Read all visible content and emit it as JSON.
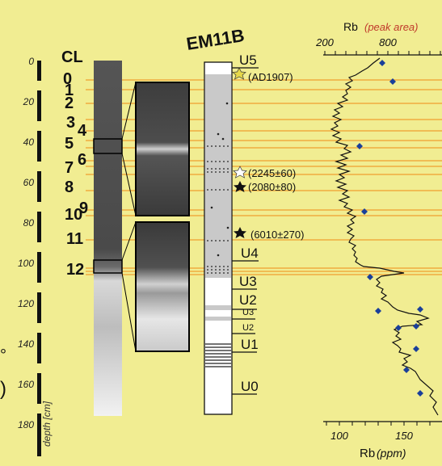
{
  "core_title": "EM11B",
  "cl_header": "CL",
  "depth_axis": {
    "label": "depth [cm]",
    "ticks": [
      "0",
      "20",
      "40",
      "60",
      "80",
      "100",
      "120",
      "140",
      "160",
      "180"
    ]
  },
  "cl_numbers": [
    "0",
    "1",
    "2",
    "3",
    "4",
    "5",
    "6",
    "7",
    "8",
    "9",
    "10",
    "11",
    "12"
  ],
  "units_top": [
    "U5",
    "U4",
    "U3",
    "U2",
    "U3",
    "U2",
    "U1",
    "U0"
  ],
  "dates": [
    "(AD1907)",
    "(2245±60)",
    "(2080±80)",
    "(6010±270)"
  ],
  "rb_top_axis": {
    "title": "Rb",
    "unit": "(peak area)",
    "ticks": [
      "200",
      "800"
    ]
  },
  "rb_bottom_axis": {
    "title": "Rb",
    "unit": "(ppm)",
    "ticks": [
      "100",
      "150"
    ]
  },
  "edge_glyphs": [
    ")",
    "°"
  ],
  "colors": {
    "background": "#f1ed92",
    "orange_line": "#f0a030",
    "diamond": "#1a3f9a",
    "star_yellow": "#e6d84a"
  }
}
